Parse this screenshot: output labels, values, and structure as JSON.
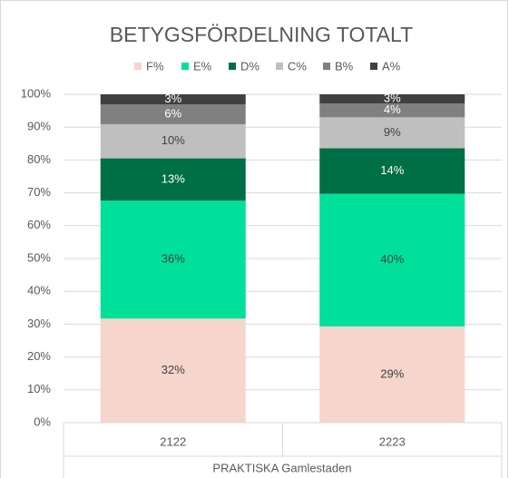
{
  "chart_data": {
    "type": "stacked_bar",
    "title": "BETYGSFÖRDELNING TOTALT",
    "categories": [
      "2122",
      "2223"
    ],
    "group_label": "PRAKTISKA Gamlestaden",
    "series": [
      {
        "name": "F%",
        "color": "#f6d5cc",
        "values": [
          31.7,
          29.3
        ],
        "value_labels": [
          "32%",
          "29%"
        ]
      },
      {
        "name": "E%",
        "color": "#00e09a",
        "values": [
          35.9,
          40.4
        ],
        "value_labels": [
          "36%",
          "40%"
        ]
      },
      {
        "name": "D%",
        "color": "#006e46",
        "values": [
          12.9,
          13.9
        ],
        "value_labels": [
          "13%",
          "14%"
        ]
      },
      {
        "name": "C%",
        "color": "#bfbfbf",
        "values": [
          10.4,
          9.4
        ],
        "value_labels": [
          "10%",
          "9%"
        ]
      },
      {
        "name": "B%",
        "color": "#808080",
        "values": [
          6.0,
          4.2
        ],
        "value_labels": [
          "6%",
          "4%"
        ]
      },
      {
        "name": "A%",
        "color": "#404040",
        "values": [
          3.1,
          2.8
        ],
        "value_labels": [
          "3%",
          "3%"
        ]
      }
    ],
    "ylim": [
      0,
      100
    ],
    "yticks": [
      {
        "value": 0,
        "label": "0%"
      },
      {
        "value": 10,
        "label": "10%"
      },
      {
        "value": 20,
        "label": "20%"
      },
      {
        "value": 30,
        "label": "30%"
      },
      {
        "value": 40,
        "label": "40%"
      },
      {
        "value": 50,
        "label": "50%"
      },
      {
        "value": 60,
        "label": "60%"
      },
      {
        "value": 70,
        "label": "70%"
      },
      {
        "value": 80,
        "label": "80%"
      },
      {
        "value": 90,
        "label": "90%"
      },
      {
        "value": 100,
        "label": "100%"
      }
    ],
    "grid": true,
    "legend": "top"
  }
}
